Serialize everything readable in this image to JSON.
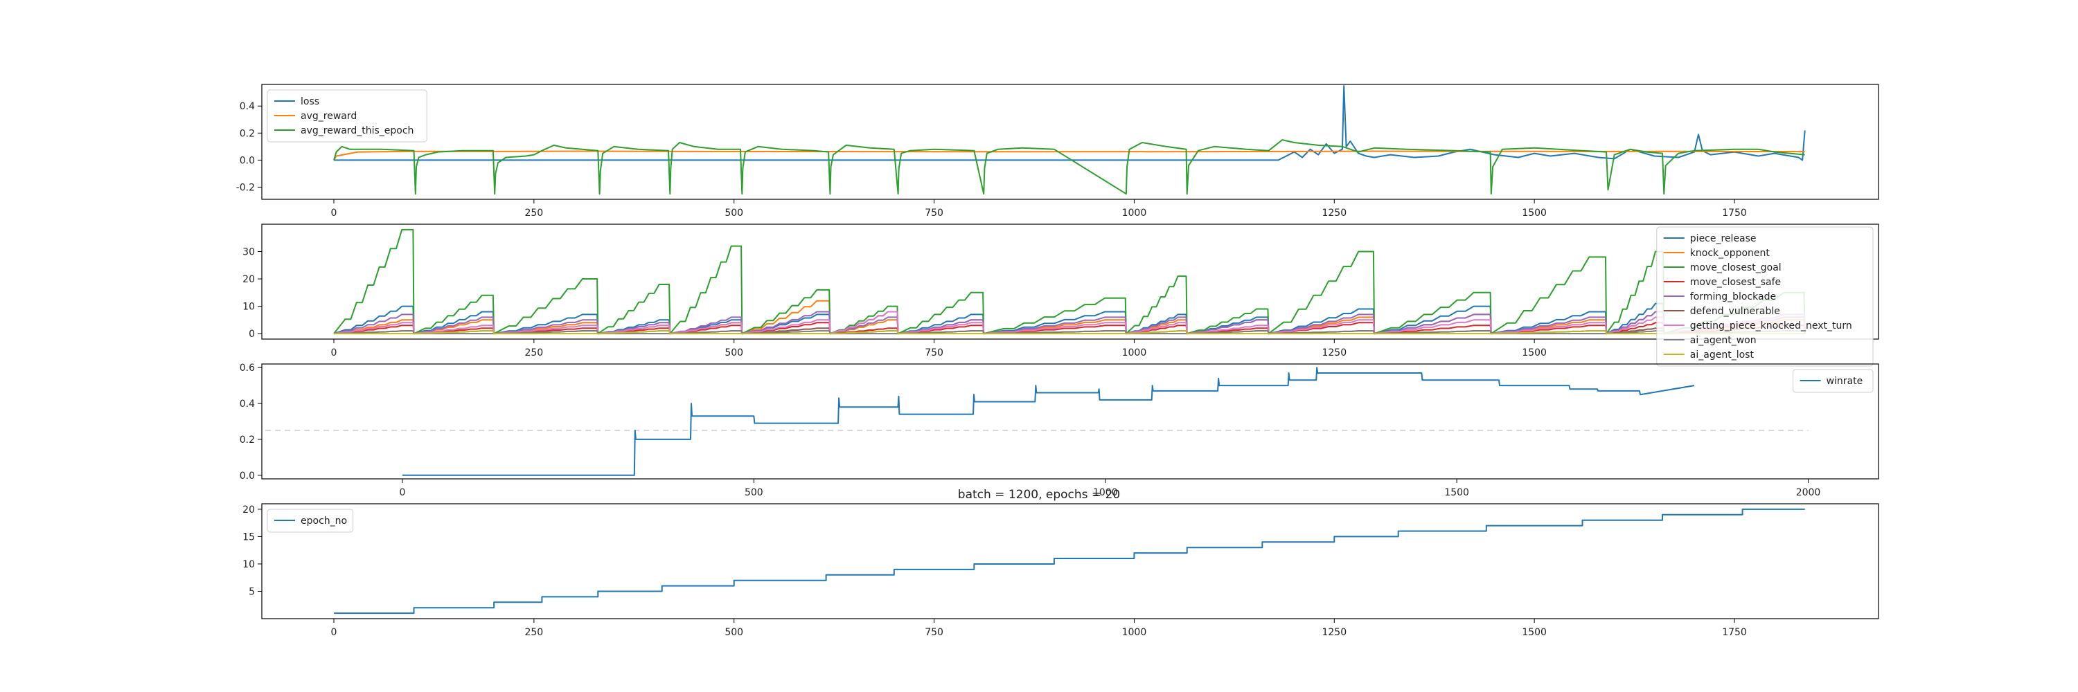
{
  "suptitle": "batch = 1200, epochs = 20",
  "chart_data": [
    {
      "id": "panel1",
      "type": "line",
      "xlim": [
        -90,
        1930
      ],
      "ylim": [
        -0.29,
        0.56
      ],
      "xticks": [
        0,
        250,
        500,
        750,
        1000,
        1250,
        1500,
        1750
      ],
      "xtick_labels": [
        "0",
        "250",
        "500",
        "750",
        "1000",
        "1250",
        "1500",
        "1750"
      ],
      "yticks": [
        -0.2,
        0.0,
        0.2,
        0.4
      ],
      "ytick_labels": [
        "-0.2",
        "0.0",
        "0.2",
        "0.4"
      ],
      "legend": "top-left",
      "series": [
        {
          "name": "loss",
          "color": "#1f77b4",
          "x": [
            0,
            1180,
            1190,
            1200,
            1210,
            1220,
            1230,
            1240,
            1250,
            1260,
            1262,
            1265,
            1270,
            1280,
            1290,
            1300,
            1320,
            1350,
            1380,
            1400,
            1420,
            1450,
            1480,
            1500,
            1520,
            1550,
            1580,
            1600,
            1620,
            1650,
            1680,
            1700,
            1705,
            1710,
            1720,
            1750,
            1780,
            1800,
            1830,
            1835,
            1838
          ],
          "y": [
            0.0,
            0.0,
            0.03,
            0.06,
            0.02,
            0.08,
            0.04,
            0.12,
            0.05,
            0.08,
            0.55,
            0.1,
            0.14,
            0.05,
            0.03,
            0.02,
            0.04,
            0.02,
            0.03,
            0.06,
            0.08,
            0.04,
            0.02,
            0.05,
            0.03,
            0.05,
            0.02,
            0.01,
            0.08,
            0.03,
            0.02,
            0.06,
            0.19,
            0.07,
            0.04,
            0.06,
            0.03,
            0.05,
            0.02,
            0.0,
            0.22
          ]
        },
        {
          "name": "avg_reward",
          "color": "#ff7f0e",
          "x": [
            0,
            3,
            30,
            100,
            200,
            300,
            500,
            700,
            900,
            1100,
            1200,
            1300,
            1400,
            1500,
            1600,
            1700,
            1838
          ],
          "y": [
            0.0,
            0.03,
            0.06,
            0.065,
            0.064,
            0.066,
            0.064,
            0.063,
            0.062,
            0.063,
            0.064,
            0.066,
            0.065,
            0.065,
            0.064,
            0.065,
            0.063
          ]
        },
        {
          "name": "avg_reward_this_epoch",
          "color": "#2ca02c",
          "x": [
            0,
            3,
            10,
            20,
            40,
            60,
            100,
            102,
            103,
            106,
            115,
            130,
            160,
            199,
            201,
            202,
            205,
            215,
            240,
            250,
            260,
            275,
            290,
            330,
            332,
            333,
            336,
            350,
            380,
            418,
            420,
            421,
            423,
            432,
            450,
            480,
            508,
            510,
            511,
            514,
            530,
            560,
            600,
            618,
            620,
            621,
            624,
            640,
            670,
            700,
            705,
            706,
            709,
            720,
            750,
            800,
            812,
            813,
            816,
            830,
            860,
            900,
            990,
            991,
            994,
            1010,
            1040,
            1065,
            1066,
            1068,
            1080,
            1100,
            1140,
            1168,
            1185,
            1200,
            1230,
            1260,
            1280,
            1300,
            1340,
            1400,
            1445,
            1446,
            1448,
            1460,
            1500,
            1560,
            1590,
            1592,
            1600,
            1620,
            1640,
            1660,
            1662,
            1664,
            1680,
            1700,
            1750,
            1780,
            1800,
            1838
          ],
          "y": [
            0.0,
            0.06,
            0.1,
            0.08,
            0.08,
            0.08,
            0.07,
            -0.25,
            -0.05,
            0.02,
            0.04,
            0.06,
            0.07,
            0.07,
            -0.25,
            -0.1,
            -0.02,
            0.02,
            0.03,
            0.04,
            0.07,
            0.11,
            0.09,
            0.07,
            -0.25,
            -0.08,
            0.05,
            0.1,
            0.08,
            0.07,
            -0.25,
            -0.06,
            0.08,
            0.13,
            0.1,
            0.08,
            0.08,
            -0.25,
            -0.06,
            0.06,
            0.1,
            0.08,
            0.07,
            0.06,
            -0.25,
            -0.05,
            0.04,
            0.11,
            0.09,
            0.08,
            -0.25,
            -0.06,
            0.05,
            0.07,
            0.08,
            0.07,
            -0.25,
            -0.06,
            0.05,
            0.08,
            0.09,
            0.08,
            -0.25,
            -0.05,
            0.08,
            0.13,
            0.1,
            0.08,
            -0.25,
            -0.04,
            0.07,
            0.1,
            0.08,
            0.07,
            0.15,
            0.13,
            0.11,
            0.1,
            0.06,
            0.09,
            0.08,
            0.07,
            0.06,
            -0.25,
            -0.05,
            0.08,
            0.09,
            0.07,
            0.06,
            -0.22,
            0.04,
            0.08,
            0.06,
            0.05,
            -0.25,
            -0.04,
            0.05,
            0.07,
            0.08,
            0.08,
            0.06,
            0.04
          ]
        }
      ]
    },
    {
      "id": "panel2",
      "type": "line",
      "xlim": [
        -90,
        1930
      ],
      "ylim": [
        -2,
        40
      ],
      "xticks": [
        0,
        250,
        500,
        750,
        1000,
        1250,
        1500
      ],
      "xtick_labels": [
        "0",
        "250",
        "500",
        "750",
        "1000",
        "1250",
        "1500"
      ],
      "yticks": [
        0,
        10,
        20,
        30
      ],
      "ytick_labels": [
        "0",
        "10",
        "20",
        "30"
      ],
      "legend": "right",
      "epoch_starts": [
        0,
        100,
        200,
        330,
        420,
        510,
        620,
        705,
        812,
        990,
        1066,
        1168,
        1300,
        1446,
        1590,
        1662,
        1838
      ],
      "series": [
        {
          "name": "piece_release",
          "color": "#1f77b4",
          "peaks": [
            10,
            8,
            7,
            5,
            5,
            7,
            8,
            7,
            8,
            7,
            6,
            9,
            10,
            8,
            11,
            7
          ]
        },
        {
          "name": "knock_opponent",
          "color": "#ff7f0e",
          "peaks": [
            5,
            5,
            4,
            3,
            4,
            12,
            5,
            5,
            5,
            5,
            5,
            6,
            7,
            5,
            8,
            5
          ]
        },
        {
          "name": "move_closest_goal",
          "color": "#2ca02c",
          "peaks": [
            38,
            14,
            20,
            18,
            32,
            16,
            10,
            15,
            13,
            21,
            9,
            30,
            15,
            28,
            30,
            15
          ]
        },
        {
          "name": "move_closest_safe",
          "color": "#d62728",
          "peaks": [
            3,
            2,
            2,
            2,
            3,
            4,
            2,
            3,
            3,
            3,
            2,
            4,
            3,
            3,
            4,
            3
          ]
        },
        {
          "name": "forming_blockade",
          "color": "#9467bd",
          "peaks": [
            7,
            6,
            5,
            4,
            6,
            8,
            6,
            5,
            6,
            6,
            5,
            7,
            7,
            6,
            8,
            6
          ]
        },
        {
          "name": "defend_vulnerable",
          "color": "#8c564b",
          "peaks": [
            1,
            1,
            1,
            1,
            1,
            2,
            1,
            1,
            1,
            1,
            1,
            1,
            1,
            1,
            2,
            1
          ]
        },
        {
          "name": "getting_piece_knocked_next_turn",
          "color": "#e377c2",
          "peaks": [
            4,
            3,
            3,
            3,
            4,
            5,
            8,
            4,
            4,
            4,
            3,
            5,
            5,
            4,
            6,
            7
          ]
        },
        {
          "name": "ai_agent_won",
          "color": "#7f7f7f",
          "peaks": [
            1,
            0,
            1,
            0,
            1,
            1,
            0,
            1,
            1,
            0,
            1,
            1,
            1,
            0,
            1,
            1
          ]
        },
        {
          "name": "ai_agent_lost",
          "color": "#bcbd22",
          "peaks": [
            0,
            1,
            0,
            1,
            0,
            0,
            1,
            0,
            0,
            1,
            0,
            0,
            0,
            1,
            0,
            0
          ]
        }
      ]
    },
    {
      "id": "panel3",
      "type": "line",
      "xlim": [
        -200,
        2100
      ],
      "ylim": [
        -0.02,
        0.62
      ],
      "xticks": [
        0,
        500,
        1000,
        1500,
        2000
      ],
      "xtick_labels": [
        "0",
        "500",
        "1000",
        "1500",
        "2000"
      ],
      "yticks": [
        0.0,
        0.2,
        0.4,
        0.6
      ],
      "ytick_labels": [
        "0.0",
        "0.2",
        "0.4",
        "0.6"
      ],
      "legend": "top-right",
      "baseline": {
        "y": 0.25,
        "x": [
          -250,
          2000
        ],
        "color": "#cccccc",
        "style": "dashed"
      },
      "series": [
        {
          "name": "winrate",
          "color": "#1f77b4",
          "x": [
            0,
            330,
            331,
            332,
            410,
            411,
            412,
            500,
            501,
            620,
            621,
            622,
            705,
            706,
            707,
            812,
            813,
            814,
            900,
            901,
            902,
            990,
            991,
            992,
            1066,
            1067,
            1068,
            1160,
            1161,
            1162,
            1260,
            1261,
            1262,
            1300,
            1301,
            1302,
            1380,
            1381,
            1450,
            1451,
            1560,
            1561,
            1660,
            1661,
            1700,
            1701,
            1760,
            1761,
            1762,
            1838
          ],
          "y": [
            0.0,
            0.0,
            0.25,
            0.2,
            0.2,
            0.4,
            0.33,
            0.33,
            0.29,
            0.29,
            0.43,
            0.38,
            0.38,
            0.44,
            0.34,
            0.34,
            0.45,
            0.41,
            0.41,
            0.5,
            0.46,
            0.46,
            0.48,
            0.42,
            0.42,
            0.5,
            0.47,
            0.47,
            0.54,
            0.5,
            0.5,
            0.57,
            0.53,
            0.53,
            0.6,
            0.57,
            0.57,
            0.57,
            0.57,
            0.53,
            0.53,
            0.5,
            0.5,
            0.48,
            0.48,
            0.47,
            0.47,
            0.45,
            0.45,
            0.5
          ]
        }
      ]
    },
    {
      "id": "panel4",
      "type": "line",
      "xlim": [
        -90,
        1930
      ],
      "ylim": [
        0,
        21
      ],
      "xticks": [
        0,
        250,
        500,
        750,
        1000,
        1250,
        1500,
        1750
      ],
      "xtick_labels": [
        "0",
        "250",
        "500",
        "750",
        "1000",
        "1250",
        "1500",
        "1750"
      ],
      "yticks": [
        5,
        10,
        15,
        20
      ],
      "ytick_labels": [
        "5",
        "10",
        "15",
        "20"
      ],
      "legend": "top-left",
      "step_starts": [
        0,
        100,
        200,
        260,
        330,
        410,
        500,
        615,
        700,
        800,
        900,
        1000,
        1066,
        1160,
        1250,
        1330,
        1440,
        1560,
        1660,
        1760,
        1838
      ],
      "series": [
        {
          "name": "epoch_no",
          "color": "#1f77b4",
          "values": [
            1,
            2,
            3,
            4,
            5,
            6,
            7,
            8,
            9,
            10,
            11,
            12,
            13,
            14,
            15,
            16,
            17,
            18,
            19,
            20
          ]
        }
      ]
    }
  ]
}
